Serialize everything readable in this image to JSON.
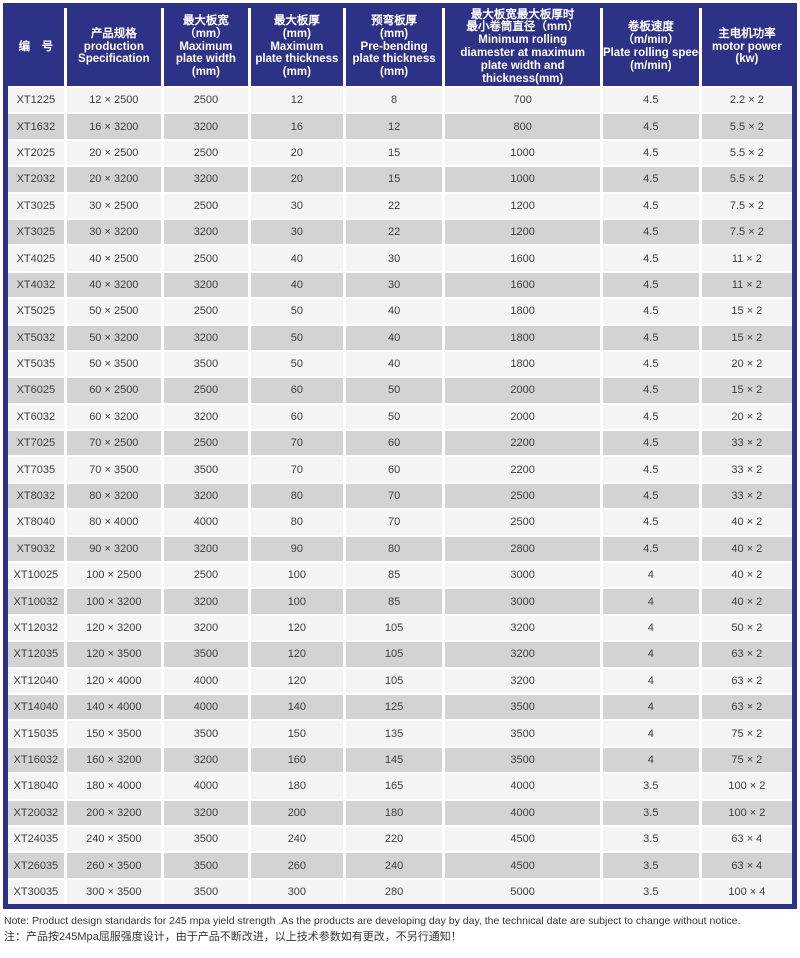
{
  "colors": {
    "frame_and_header": "#2e3287",
    "row_light": "#f4f4f4",
    "row_dark": "#d3d3d3",
    "grid_line": "#ffffff",
    "header_text": "#ffffff",
    "cell_text": "#3d3d3d"
  },
  "table": {
    "columns": [
      {
        "key": "model",
        "lines": [
          "编　号"
        ]
      },
      {
        "key": "specification",
        "lines": [
          "产品规格",
          "production",
          "Specification"
        ]
      },
      {
        "key": "max_width",
        "lines": [
          "最大板宽",
          "（mm）",
          "Maximum",
          "plate width",
          "(mm)"
        ]
      },
      {
        "key": "max_thickness",
        "lines": [
          "最大板厚",
          "(mm)",
          "Maximum",
          "plate thickness",
          "(mm)"
        ]
      },
      {
        "key": "prebend_thickness",
        "lines": [
          "预弯板厚",
          "(mm)",
          "Pre-bending",
          "plate thickness",
          "(mm)"
        ]
      },
      {
        "key": "min_roll_diameter",
        "lines": [
          "最大板宽最大板厚时",
          "最小卷筒直径（mm）",
          "Minimum rolling",
          "diamester at maximum",
          "plate width and",
          "thickness(mm)"
        ]
      },
      {
        "key": "rolling_speed",
        "lines": [
          "卷板速度",
          "（m/min）",
          "Plate rolling speed",
          "(m/min)"
        ]
      },
      {
        "key": "motor_power",
        "lines": [
          "主电机功率",
          "motor power",
          "(kw)"
        ]
      }
    ],
    "rows": [
      [
        "XT1225",
        "12 × 2500",
        "2500",
        "12",
        "8",
        "700",
        "4.5",
        "2.2 × 2"
      ],
      [
        "XT1632",
        "16 × 3200",
        "3200",
        "16",
        "12",
        "800",
        "4.5",
        "5.5 × 2"
      ],
      [
        "XT2025",
        "20 × 2500",
        "2500",
        "20",
        "15",
        "1000",
        "4.5",
        "5.5 × 2"
      ],
      [
        "XT2032",
        "20 × 3200",
        "3200",
        "20",
        "15",
        "1000",
        "4.5",
        "5.5 × 2"
      ],
      [
        "XT3025",
        "30 × 2500",
        "2500",
        "30",
        "22",
        "1200",
        "4.5",
        "7.5 × 2"
      ],
      [
        "XT3025",
        "30 × 3200",
        "3200",
        "30",
        "22",
        "1200",
        "4.5",
        "7.5 × 2"
      ],
      [
        "XT4025",
        "40 × 2500",
        "2500",
        "40",
        "30",
        "1600",
        "4.5",
        "11 × 2"
      ],
      [
        "XT4032",
        "40 × 3200",
        "3200",
        "40",
        "30",
        "1600",
        "4.5",
        "11 × 2"
      ],
      [
        "XT5025",
        "50 × 2500",
        "2500",
        "50",
        "40",
        "1800",
        "4.5",
        "15 × 2"
      ],
      [
        "XT5032",
        "50 × 3200",
        "3200",
        "50",
        "40",
        "1800",
        "4.5",
        "15 × 2"
      ],
      [
        "XT5035",
        "50 × 3500",
        "3500",
        "50",
        "40",
        "1800",
        "4.5",
        "20 × 2"
      ],
      [
        "XT6025",
        "60 × 2500",
        "2500",
        "60",
        "50",
        "2000",
        "4.5",
        "15 × 2"
      ],
      [
        "XT6032",
        "60 × 3200",
        "3200",
        "60",
        "50",
        "2000",
        "4.5",
        "20 × 2"
      ],
      [
        "XT7025",
        "70 × 2500",
        "2500",
        "70",
        "60",
        "2200",
        "4.5",
        "33 × 2"
      ],
      [
        "XT7035",
        "70 × 3500",
        "3500",
        "70",
        "60",
        "2200",
        "4.5",
        "33 × 2"
      ],
      [
        "XT8032",
        "80 × 3200",
        "3200",
        "80",
        "70",
        "2500",
        "4.5",
        "33 × 2"
      ],
      [
        "XT8040",
        "80 × 4000",
        "4000",
        "80",
        "70",
        "2500",
        "4.5",
        "40 × 2"
      ],
      [
        "XT9032",
        "90 × 3200",
        "3200",
        "90",
        "80",
        "2800",
        "4.5",
        "40 × 2"
      ],
      [
        "XT10025",
        "100 × 2500",
        "2500",
        "100",
        "85",
        "3000",
        "4",
        "40 × 2"
      ],
      [
        "XT10032",
        "100 × 3200",
        "3200",
        "100",
        "85",
        "3000",
        "4",
        "40 × 2"
      ],
      [
        "XT12032",
        "120 × 3200",
        "3200",
        "120",
        "105",
        "3200",
        "4",
        "50 × 2"
      ],
      [
        "XT12035",
        "120 × 3500",
        "3500",
        "120",
        "105",
        "3200",
        "4",
        "63 × 2"
      ],
      [
        "XT12040",
        "120 × 4000",
        "4000",
        "120",
        "105",
        "3200",
        "4",
        "63 × 2"
      ],
      [
        "XT14040",
        "140 × 4000",
        "4000",
        "140",
        "125",
        "3500",
        "4",
        "63 × 2"
      ],
      [
        "XT15035",
        "150 × 3500",
        "3500",
        "150",
        "135",
        "3500",
        "4",
        "75 × 2"
      ],
      [
        "XT16032",
        "160 × 3200",
        "3200",
        "160",
        "145",
        "3500",
        "4",
        "75 × 2"
      ],
      [
        "XT18040",
        "180 × 4000",
        "4000",
        "180",
        "165",
        "4000",
        "3.5",
        "100 × 2"
      ],
      [
        "XT20032",
        "200 × 3200",
        "3200",
        "200",
        "180",
        "4000",
        "3.5",
        "100 × 2"
      ],
      [
        "XT24035",
        "240 × 3500",
        "3500",
        "240",
        "220",
        "4500",
        "3.5",
        "63 × 4"
      ],
      [
        "XT26035",
        "260 × 3500",
        "3500",
        "260",
        "240",
        "4500",
        "3.5",
        "63 × 4"
      ],
      [
        "XT30035",
        "300 × 3500",
        "3500",
        "300",
        "280",
        "5000",
        "3.5",
        "100 × 4"
      ]
    ]
  },
  "notes": {
    "en": "Note: Product design standards for 245 mpa yield strength .As the products are developing day by day, the technical date are subject to change without notice.",
    "zh": "注：产品按245Mpa屈服强度设计，由于产品不断改进，以上技术参数如有更改，不另行通知！"
  }
}
